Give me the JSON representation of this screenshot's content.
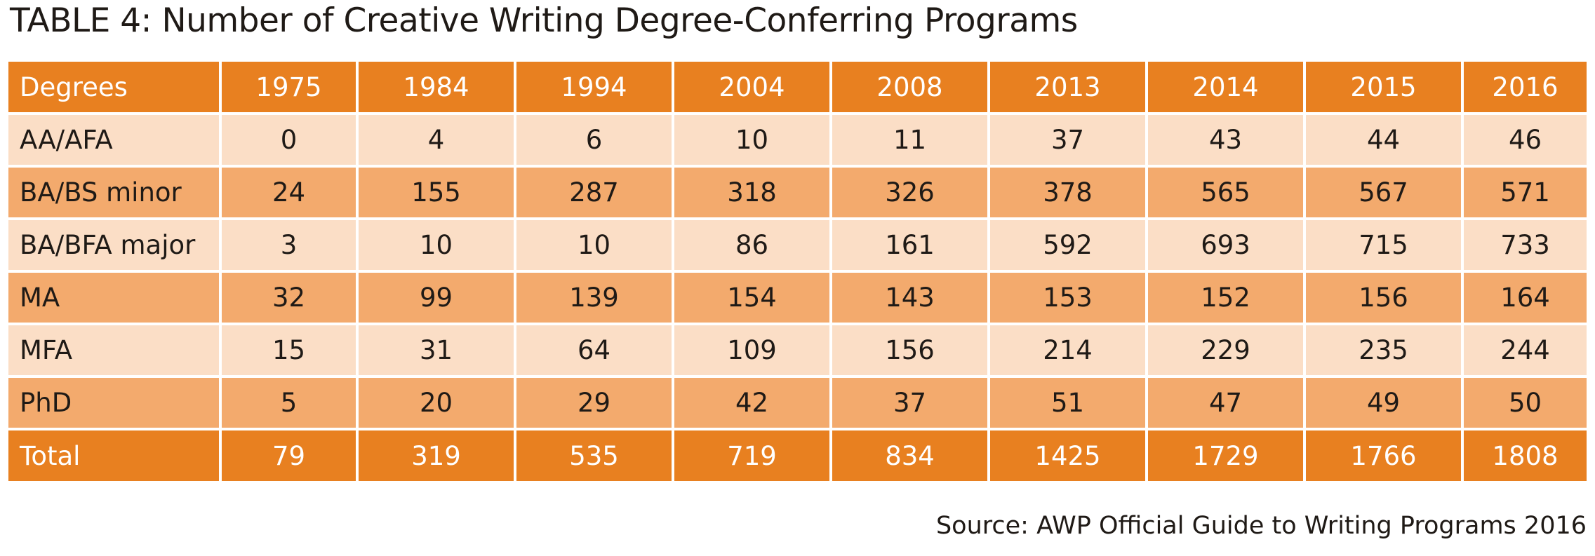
{
  "title": "TABLE 4: Number of Creative Writing Degree-Conferring Programs",
  "source": "Source: AWP Official Guide to Writing Programs 2016",
  "colors": {
    "header": "#e88020",
    "row_light": "#fbdec6",
    "row_mid": "#f3aa6d",
    "total": "#e88020"
  },
  "table": {
    "headers": [
      "Degrees",
      "1975",
      "1984",
      "1994",
      "2004",
      "2008",
      "2013",
      "2014",
      "2015",
      "2016"
    ],
    "rows": [
      [
        "AA/AFA",
        "0",
        "4",
        "6",
        "10",
        "11",
        "37",
        "43",
        "44",
        "46"
      ],
      [
        "BA/BS minor",
        "24",
        "155",
        "287",
        "318",
        "326",
        "378",
        "565",
        "567",
        "571"
      ],
      [
        "BA/BFA major",
        "3",
        "10",
        "10",
        "86",
        "161",
        "592",
        "693",
        "715",
        "733"
      ],
      [
        "MA",
        "32",
        "99",
        "139",
        "154",
        "143",
        "153",
        "152",
        "156",
        "164"
      ],
      [
        "MFA",
        "15",
        "31",
        "64",
        "109",
        "156",
        "214",
        "229",
        "235",
        "244"
      ],
      [
        "PhD",
        "5",
        "20",
        "29",
        "42",
        "37",
        "51",
        "47",
        "49",
        "50"
      ]
    ],
    "total": [
      "Total",
      "79",
      "319",
      "535",
      "719",
      "834",
      "1425",
      "1729",
      "1766",
      "1808"
    ]
  }
}
